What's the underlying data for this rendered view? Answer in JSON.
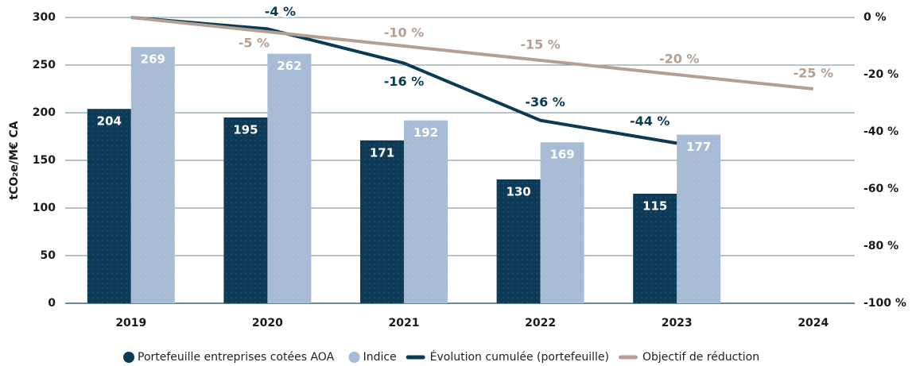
{
  "chart_data": {
    "type": "bar_line",
    "categories": [
      "2019",
      "2020",
      "2021",
      "2022",
      "2023",
      "2024"
    ],
    "y_label": "tCO₂e/M€ CA",
    "ylim": [
      0,
      300
    ],
    "yticks": [
      0,
      50,
      100,
      150,
      200,
      250,
      300
    ],
    "y2lim": [
      -100,
      0
    ],
    "y2ticks": [
      {
        "value": 0,
        "label": "0 %"
      },
      {
        "value": -20,
        "label": "-20 %"
      },
      {
        "value": -40,
        "label": "-40 %"
      },
      {
        "value": -60,
        "label": "-60 %"
      },
      {
        "value": -80,
        "label": "-80 %"
      },
      {
        "value": -100,
        "label": "-100 %"
      }
    ],
    "grid": true,
    "legend": "bottom",
    "series": [
      {
        "name": "Portefeuille entreprises cotées AOA",
        "kind": "bar",
        "color": "#0d3a56",
        "values": [
          204,
          195,
          171,
          130,
          115,
          null
        ]
      },
      {
        "name": "Indice",
        "kind": "bar",
        "color": "#a7bbd4",
        "values": [
          269,
          262,
          192,
          169,
          177,
          null
        ]
      },
      {
        "name": "Évolution cumulée (portefeuille)",
        "kind": "line",
        "axis": "y2",
        "color": "#0b3a55",
        "values": [
          0,
          -4,
          -16,
          -36,
          -44,
          null
        ],
        "value_labels": [
          null,
          "-4 %",
          "-16 %",
          "-36 %",
          "-44 %",
          null
        ]
      },
      {
        "name": "Objectif de réduction",
        "kind": "line",
        "axis": "y2",
        "color": "#b39f93",
        "values": [
          0,
          -5,
          -10,
          -15,
          -20,
          -25
        ],
        "value_labels": [
          null,
          "-5 %",
          "-10 %",
          "-15 %",
          "-20 %",
          "-25 %"
        ]
      }
    ]
  }
}
